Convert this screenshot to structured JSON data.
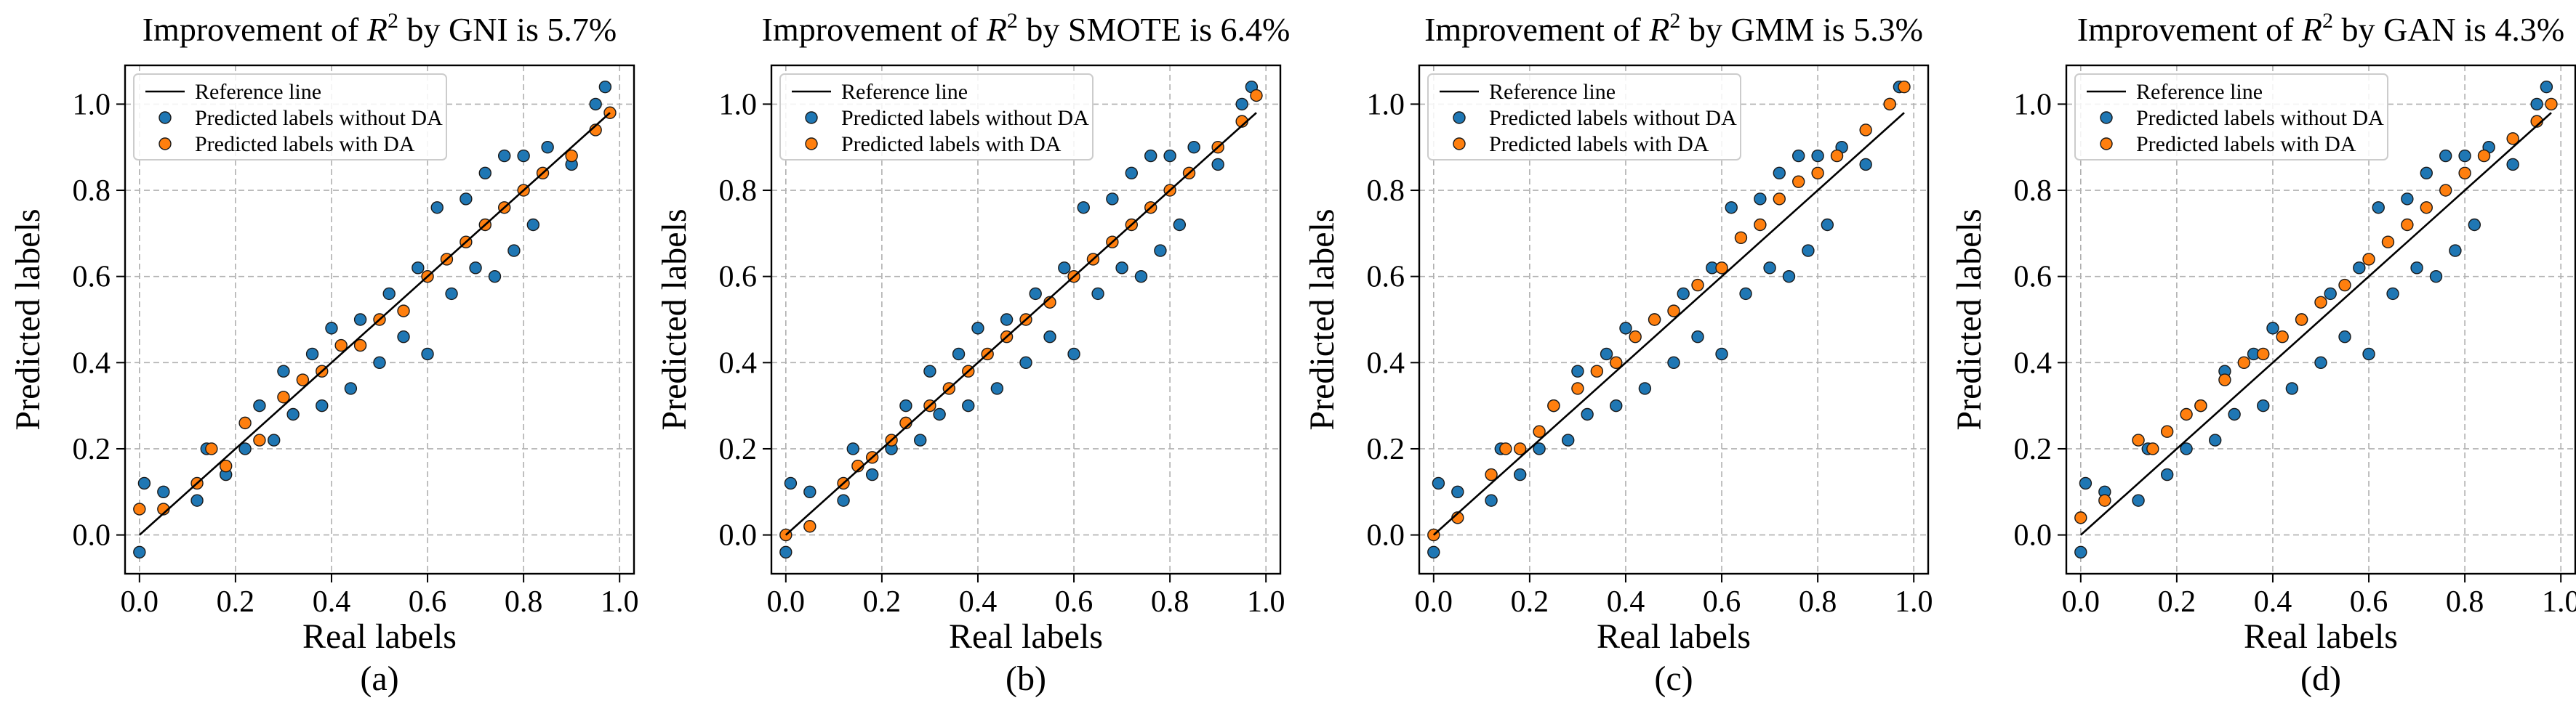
{
  "figure": {
    "xlabel": "Real labels",
    "ylabel": "Predicted labels",
    "legend": {
      "reference_line": "Reference line",
      "without_da": "Predicted labels without DA",
      "with_da": "Predicted labels with DA"
    },
    "colors": {
      "without_da": "#1f77b4",
      "with_da": "#ff7f0e",
      "reference_line": "#000000",
      "grid": "#b0b0b0"
    }
  },
  "panels": [
    {
      "title_prefix": "Improvement of ",
      "title_r": "R",
      "title_sup": "2",
      "title_suffix": " by GNI is 5.7%",
      "caption": "(a)"
    },
    {
      "title_prefix": "Improvement of ",
      "title_r": "R",
      "title_sup": "2",
      "title_suffix": " by SMOTE is 6.4%",
      "caption": "(b)"
    },
    {
      "title_prefix": "Improvement of ",
      "title_r": "R",
      "title_sup": "2",
      "title_suffix": " by GMM is 5.3%",
      "caption": "(c)"
    },
    {
      "title_prefix": "Improvement of ",
      "title_r": "R",
      "title_sup": "2",
      "title_suffix": " by GAN is 4.3%",
      "caption": "(d)"
    }
  ],
  "chart_data": [
    {
      "type": "scatter",
      "title": "Improvement of R2 by GNI is 5.7%",
      "xlabel": "Real labels",
      "ylabel": "Predicted labels",
      "xlim": [
        -0.03,
        1.03
      ],
      "ylim": [
        -0.09,
        1.09
      ],
      "xticks": [
        0.0,
        0.2,
        0.4,
        0.6,
        0.8,
        1.0
      ],
      "yticks": [
        0.0,
        0.2,
        0.4,
        0.6,
        0.8,
        1.0
      ],
      "grid": true,
      "legend_position": "upper left",
      "series": [
        {
          "name": "Reference line",
          "kind": "line",
          "x": [
            0.0,
            0.98
          ],
          "y": [
            0.0,
            0.98
          ]
        },
        {
          "name": "Predicted labels without DA",
          "kind": "scatter",
          "x": [
            0.0,
            0.01,
            0.05,
            0.12,
            0.14,
            0.18,
            0.22,
            0.25,
            0.28,
            0.3,
            0.32,
            0.36,
            0.38,
            0.4,
            0.44,
            0.46,
            0.5,
            0.52,
            0.55,
            0.58,
            0.6,
            0.62,
            0.65,
            0.68,
            0.7,
            0.72,
            0.74,
            0.76,
            0.78,
            0.8,
            0.82,
            0.85,
            0.9,
            0.95,
            0.97
          ],
          "y": [
            -0.04,
            0.12,
            0.1,
            0.08,
            0.2,
            0.14,
            0.2,
            0.3,
            0.22,
            0.38,
            0.28,
            0.42,
            0.3,
            0.48,
            0.34,
            0.5,
            0.4,
            0.56,
            0.46,
            0.62,
            0.42,
            0.76,
            0.56,
            0.78,
            0.62,
            0.84,
            0.6,
            0.88,
            0.66,
            0.88,
            0.72,
            0.9,
            0.86,
            1.0,
            1.04
          ]
        },
        {
          "name": "Predicted labels with DA",
          "kind": "scatter",
          "x": [
            0.0,
            0.05,
            0.12,
            0.15,
            0.18,
            0.22,
            0.25,
            0.3,
            0.34,
            0.38,
            0.42,
            0.46,
            0.5,
            0.55,
            0.6,
            0.64,
            0.68,
            0.72,
            0.76,
            0.8,
            0.84,
            0.9,
            0.95,
            0.98
          ],
          "y": [
            0.06,
            0.06,
            0.12,
            0.2,
            0.16,
            0.26,
            0.22,
            0.32,
            0.36,
            0.38,
            0.44,
            0.44,
            0.5,
            0.52,
            0.6,
            0.64,
            0.68,
            0.72,
            0.76,
            0.8,
            0.84,
            0.88,
            0.94,
            0.98
          ]
        }
      ]
    },
    {
      "type": "scatter",
      "title": "Improvement of R2 by SMOTE is 6.4%",
      "xlabel": "Real labels",
      "ylabel": "Predicted labels",
      "xlim": [
        -0.03,
        1.03
      ],
      "ylim": [
        -0.09,
        1.09
      ],
      "xticks": [
        0.0,
        0.2,
        0.4,
        0.6,
        0.8,
        1.0
      ],
      "yticks": [
        0.0,
        0.2,
        0.4,
        0.6,
        0.8,
        1.0
      ],
      "grid": true,
      "legend_position": "upper left",
      "series": [
        {
          "name": "Reference line",
          "kind": "line",
          "x": [
            0.0,
            0.98
          ],
          "y": [
            0.0,
            0.98
          ]
        },
        {
          "name": "Predicted labels without DA",
          "kind": "scatter",
          "x": [
            0.0,
            0.01,
            0.05,
            0.12,
            0.14,
            0.18,
            0.22,
            0.25,
            0.28,
            0.3,
            0.32,
            0.36,
            0.38,
            0.4,
            0.44,
            0.46,
            0.5,
            0.52,
            0.55,
            0.58,
            0.6,
            0.62,
            0.65,
            0.68,
            0.7,
            0.72,
            0.74,
            0.76,
            0.78,
            0.8,
            0.82,
            0.85,
            0.9,
            0.95,
            0.97
          ],
          "y": [
            -0.04,
            0.12,
            0.1,
            0.08,
            0.2,
            0.14,
            0.2,
            0.3,
            0.22,
            0.38,
            0.28,
            0.42,
            0.3,
            0.48,
            0.34,
            0.5,
            0.4,
            0.56,
            0.46,
            0.62,
            0.42,
            0.76,
            0.56,
            0.78,
            0.62,
            0.84,
            0.6,
            0.88,
            0.66,
            0.88,
            0.72,
            0.9,
            0.86,
            1.0,
            1.04
          ]
        },
        {
          "name": "Predicted labels with DA",
          "kind": "scatter",
          "x": [
            0.0,
            0.05,
            0.12,
            0.15,
            0.18,
            0.22,
            0.25,
            0.3,
            0.34,
            0.38,
            0.42,
            0.46,
            0.5,
            0.55,
            0.6,
            0.64,
            0.68,
            0.72,
            0.76,
            0.8,
            0.84,
            0.9,
            0.95,
            0.98
          ],
          "y": [
            0.0,
            0.02,
            0.12,
            0.16,
            0.18,
            0.22,
            0.26,
            0.3,
            0.34,
            0.38,
            0.42,
            0.46,
            0.5,
            0.54,
            0.6,
            0.64,
            0.68,
            0.72,
            0.76,
            0.8,
            0.84,
            0.9,
            0.96,
            1.02
          ]
        }
      ]
    },
    {
      "type": "scatter",
      "title": "Improvement of R2 by GMM is 5.3%",
      "xlabel": "Real labels",
      "ylabel": "Predicted labels",
      "xlim": [
        -0.03,
        1.03
      ],
      "ylim": [
        -0.09,
        1.09
      ],
      "xticks": [
        0.0,
        0.2,
        0.4,
        0.6,
        0.8,
        1.0
      ],
      "yticks": [
        0.0,
        0.2,
        0.4,
        0.6,
        0.8,
        1.0
      ],
      "grid": true,
      "legend_position": "upper left",
      "series": [
        {
          "name": "Reference line",
          "kind": "line",
          "x": [
            0.0,
            0.98
          ],
          "y": [
            0.0,
            0.98
          ]
        },
        {
          "name": "Predicted labels without DA",
          "kind": "scatter",
          "x": [
            0.0,
            0.01,
            0.05,
            0.12,
            0.14,
            0.18,
            0.22,
            0.25,
            0.28,
            0.3,
            0.32,
            0.36,
            0.38,
            0.4,
            0.44,
            0.46,
            0.5,
            0.52,
            0.55,
            0.58,
            0.6,
            0.62,
            0.65,
            0.68,
            0.7,
            0.72,
            0.74,
            0.76,
            0.78,
            0.8,
            0.82,
            0.85,
            0.9,
            0.95,
            0.97
          ],
          "y": [
            -0.04,
            0.12,
            0.1,
            0.08,
            0.2,
            0.14,
            0.2,
            0.3,
            0.22,
            0.38,
            0.28,
            0.42,
            0.3,
            0.48,
            0.34,
            0.5,
            0.4,
            0.56,
            0.46,
            0.62,
            0.42,
            0.76,
            0.56,
            0.78,
            0.62,
            0.84,
            0.6,
            0.88,
            0.66,
            0.88,
            0.72,
            0.9,
            0.86,
            1.0,
            1.04
          ]
        },
        {
          "name": "Predicted labels with DA",
          "kind": "scatter",
          "x": [
            0.0,
            0.05,
            0.12,
            0.15,
            0.18,
            0.22,
            0.25,
            0.3,
            0.34,
            0.38,
            0.42,
            0.46,
            0.5,
            0.55,
            0.6,
            0.64,
            0.68,
            0.72,
            0.76,
            0.8,
            0.84,
            0.9,
            0.95,
            0.98
          ],
          "y": [
            0.0,
            0.04,
            0.14,
            0.2,
            0.2,
            0.24,
            0.3,
            0.34,
            0.38,
            0.4,
            0.46,
            0.5,
            0.52,
            0.58,
            0.62,
            0.69,
            0.72,
            0.78,
            0.82,
            0.84,
            0.88,
            0.94,
            1.0,
            1.04
          ]
        }
      ]
    },
    {
      "type": "scatter",
      "title": "Improvement of R2 by GAN is 4.3%",
      "xlabel": "Real labels",
      "ylabel": "Predicted labels",
      "xlim": [
        -0.03,
        1.03
      ],
      "ylim": [
        -0.09,
        1.09
      ],
      "xticks": [
        0.0,
        0.2,
        0.4,
        0.6,
        0.8,
        1.0
      ],
      "yticks": [
        0.0,
        0.2,
        0.4,
        0.6,
        0.8,
        1.0
      ],
      "grid": true,
      "legend_position": "upper left",
      "series": [
        {
          "name": "Reference line",
          "kind": "line",
          "x": [
            0.0,
            0.98
          ],
          "y": [
            0.0,
            0.98
          ]
        },
        {
          "name": "Predicted labels without DA",
          "kind": "scatter",
          "x": [
            0.0,
            0.01,
            0.05,
            0.12,
            0.14,
            0.18,
            0.22,
            0.25,
            0.28,
            0.3,
            0.32,
            0.36,
            0.38,
            0.4,
            0.44,
            0.46,
            0.5,
            0.52,
            0.55,
            0.58,
            0.6,
            0.62,
            0.65,
            0.68,
            0.7,
            0.72,
            0.74,
            0.76,
            0.78,
            0.8,
            0.82,
            0.85,
            0.9,
            0.95,
            0.97
          ],
          "y": [
            -0.04,
            0.12,
            0.1,
            0.08,
            0.2,
            0.14,
            0.2,
            0.3,
            0.22,
            0.38,
            0.28,
            0.42,
            0.3,
            0.48,
            0.34,
            0.5,
            0.4,
            0.56,
            0.46,
            0.62,
            0.42,
            0.76,
            0.56,
            0.78,
            0.62,
            0.84,
            0.6,
            0.88,
            0.66,
            0.88,
            0.72,
            0.9,
            0.86,
            1.0,
            1.04
          ]
        },
        {
          "name": "Predicted labels with DA",
          "kind": "scatter",
          "x": [
            0.0,
            0.05,
            0.12,
            0.15,
            0.18,
            0.22,
            0.25,
            0.3,
            0.34,
            0.38,
            0.42,
            0.46,
            0.5,
            0.55,
            0.6,
            0.64,
            0.68,
            0.72,
            0.76,
            0.8,
            0.84,
            0.9,
            0.95,
            0.98
          ],
          "y": [
            0.04,
            0.08,
            0.22,
            0.2,
            0.24,
            0.28,
            0.3,
            0.36,
            0.4,
            0.42,
            0.46,
            0.5,
            0.54,
            0.58,
            0.64,
            0.68,
            0.72,
            0.76,
            0.8,
            0.84,
            0.88,
            0.92,
            0.96,
            1.0
          ]
        }
      ]
    }
  ]
}
